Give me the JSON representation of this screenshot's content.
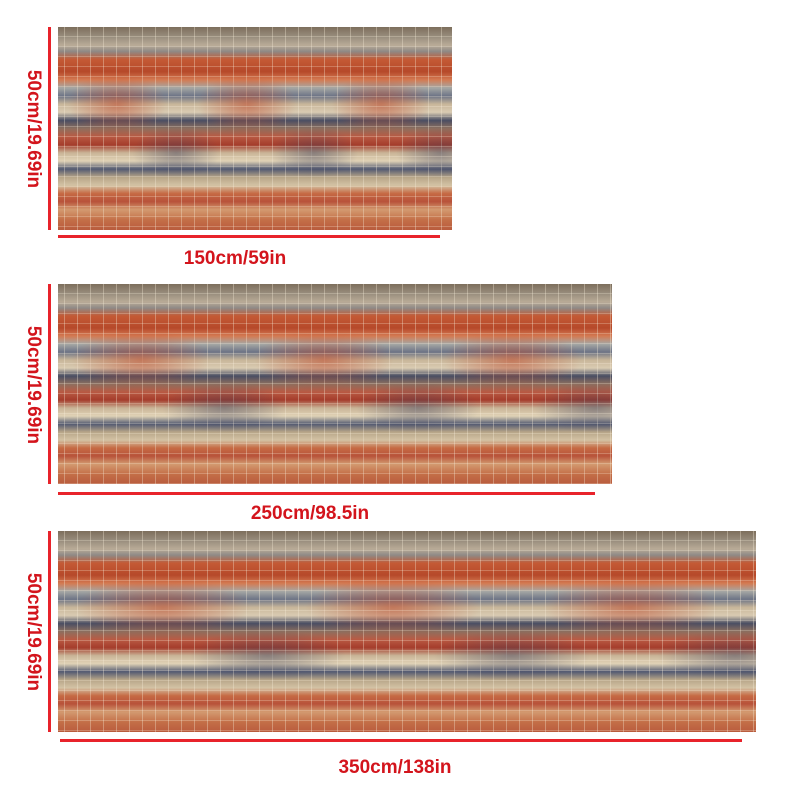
{
  "rugs": [
    {
      "width_label": "150cm/59in",
      "height_label": "50cm/19.69in"
    },
    {
      "width_label": "250cm/98.5in",
      "height_label": "50cm/19.69in"
    },
    {
      "width_label": "350cm/138in",
      "height_label": "50cm/19.69in"
    }
  ],
  "colors": {
    "dimension_text": "#d3141c",
    "dimension_line": "#e8232b",
    "rug_palette": [
      "#b6492a",
      "#c45a35",
      "#4a4e63",
      "#c9b497",
      "#8f8a86",
      "#7d6e5c"
    ]
  }
}
